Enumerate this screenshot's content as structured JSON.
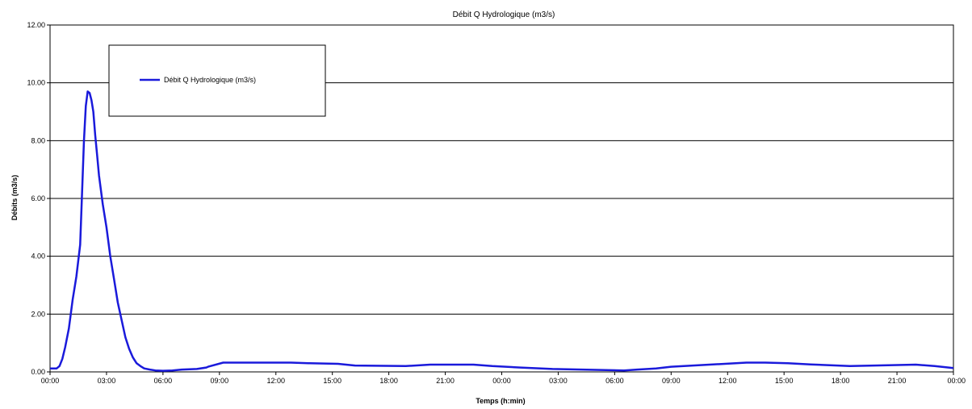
{
  "chart_data": {
    "type": "line",
    "title": "Débit Q Hydrologique  (m3/s)",
    "xlabel": "Temps (h:min)",
    "ylabel": "Débits (m3/s)",
    "ylim": [
      0,
      12
    ],
    "yticks": [
      "0.00",
      "2.00",
      "4.00",
      "6.00",
      "8.00",
      "10.00",
      "12.00"
    ],
    "xlim": [
      0,
      48
    ],
    "xtick_labels": [
      "00:00",
      "03:00",
      "06:00",
      "09:00",
      "12:00",
      "15:00",
      "18:00",
      "21:00",
      "00:00",
      "03:00",
      "06:00",
      "09:00",
      "12:00",
      "15:00",
      "18:00",
      "21:00",
      "00:00"
    ],
    "grid": "horizontal",
    "legend_position": "top-left",
    "series": [
      {
        "name": "Débit Q Hydrologique  (m3/s)",
        "color": "#1a1adb",
        "x": [
          0,
          0.35,
          0.5,
          0.65,
          0.8,
          1.0,
          1.2,
          1.4,
          1.6,
          1.8,
          1.9,
          2.0,
          2.1,
          2.2,
          2.3,
          2.4,
          2.5,
          2.6,
          2.8,
          3.0,
          3.2,
          3.4,
          3.6,
          3.8,
          4.0,
          4.2,
          4.4,
          4.6,
          4.8,
          5.0,
          5.3,
          5.6,
          6.0,
          6.5,
          7.0,
          7.8,
          8.3,
          8.4,
          9.2,
          12.8,
          13.8,
          15.3,
          16.2,
          18.9,
          20.2,
          22.5,
          23.5,
          25.0,
          26.7,
          30.5,
          31.2,
          32.2,
          33.0,
          37.0,
          38.0,
          39.2,
          40.4,
          42.5,
          43.8,
          46.0,
          47.0,
          48.0
        ],
        "y": [
          0.12,
          0.12,
          0.2,
          0.45,
          0.85,
          1.5,
          2.5,
          3.3,
          4.4,
          8.0,
          9.2,
          9.7,
          9.65,
          9.4,
          9.0,
          8.2,
          7.5,
          6.8,
          5.8,
          5.0,
          4.0,
          3.2,
          2.4,
          1.8,
          1.2,
          0.8,
          0.5,
          0.3,
          0.2,
          0.12,
          0.08,
          0.05,
          0.04,
          0.05,
          0.08,
          0.1,
          0.15,
          0.18,
          0.32,
          0.32,
          0.3,
          0.28,
          0.22,
          0.2,
          0.25,
          0.25,
          0.2,
          0.15,
          0.1,
          0.05,
          0.08,
          0.12,
          0.18,
          0.32,
          0.32,
          0.3,
          0.26,
          0.2,
          0.22,
          0.25,
          0.2,
          0.13
        ]
      }
    ]
  }
}
